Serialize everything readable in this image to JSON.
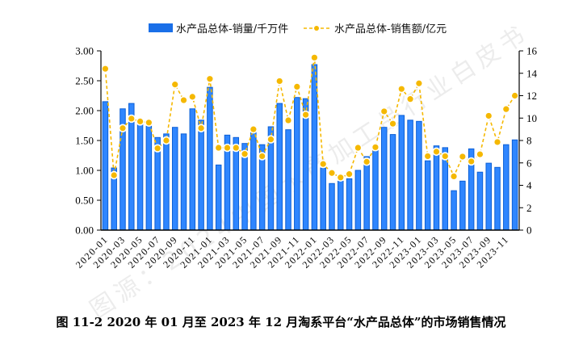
{
  "caption": "图 11-2 2020 年 01 月至 2023 年 12 月淘系平台“水产品总体”的市场销售情况",
  "watermark": "图源：2024中国水产加工品行业白皮书",
  "chart_data": {
    "type": "bar+line",
    "title": "",
    "legend_position": "top",
    "grid": false,
    "categories": [
      "2020-01",
      "2020-02",
      "2020-03",
      "2020-04",
      "2020-05",
      "2020-06",
      "2020-07",
      "2020-08",
      "2020-09",
      "2020-10",
      "2020-11",
      "2020-12",
      "2021-01",
      "2021-02",
      "2021-03",
      "2021-04",
      "2021-05",
      "2021-06",
      "2021-07",
      "2021-08",
      "2021-09",
      "2021-10",
      "2021-11",
      "2021-12",
      "2022-01",
      "2022-02",
      "2022-03",
      "2022-04",
      "2022-05",
      "2022-06",
      "2022-07",
      "2022-08",
      "2022-09",
      "2022-10",
      "2022-11",
      "2022-12",
      "2023-01",
      "2023-02",
      "2023-03",
      "2023-04",
      "2023-05",
      "2023-06",
      "2023-07",
      "2023-08",
      "2023-09",
      "2023-10",
      "2023-11",
      "2023-12"
    ],
    "x_tick_labels": [
      "2020-01",
      "2020-03",
      "2020-05",
      "2020-07",
      "2020-09",
      "2020-11",
      "2021-01",
      "2021-03",
      "2021-05",
      "2021-07",
      "2021-09",
      "2021-11",
      "2022-01",
      "2022-03",
      "2022-05",
      "2022-07",
      "2022-09",
      "2022-11",
      "2023-01",
      "2023-03",
      "2023-05",
      "2023-07",
      "2023-09",
      "2023-11"
    ],
    "series": [
      {
        "name": "水产品总体-销量/千万件",
        "type": "bar",
        "axis": "left",
        "color": "#1a6fe8",
        "values": [
          2.15,
          1.04,
          2.03,
          2.12,
          1.77,
          1.74,
          1.55,
          1.61,
          1.72,
          1.61,
          2.03,
          1.84,
          2.39,
          1.09,
          1.59,
          1.55,
          1.45,
          1.73,
          1.43,
          1.73,
          2.12,
          1.68,
          2.22,
          2.2,
          2.77,
          1.04,
          0.78,
          0.82,
          0.86,
          1.0,
          1.23,
          1.34,
          1.72,
          1.6,
          1.92,
          1.84,
          1.82,
          1.16,
          1.41,
          1.38,
          0.66,
          0.82,
          1.36,
          0.97,
          1.12,
          1.05,
          1.43,
          1.51
        ]
      },
      {
        "name": "水产品总体-销售额/亿元",
        "type": "line",
        "axis": "right",
        "color": "#f5b800",
        "values": [
          14.4,
          4.9,
          9.1,
          9.95,
          9.7,
          9.6,
          7.3,
          8.0,
          13.0,
          11.6,
          11.9,
          9.1,
          13.5,
          7.35,
          7.35,
          7.35,
          6.8,
          9.0,
          6.6,
          8.1,
          13.3,
          9.8,
          12.8,
          10.3,
          15.4,
          5.9,
          5.1,
          4.7,
          5.0,
          7.35,
          6.1,
          7.4,
          10.6,
          9.5,
          12.6,
          11.7,
          13.1,
          6.6,
          7.0,
          6.6,
          4.8,
          6.56,
          6.13,
          6.77,
          10.2,
          7.86,
          10.8,
          12.0
        ]
      }
    ],
    "y_left": {
      "ylim": [
        0,
        3
      ],
      "ticks": [
        "0.00",
        "0.50",
        "1.00",
        "1.50",
        "2.00",
        "2.50",
        "3.00"
      ],
      "label": ""
    },
    "y_right": {
      "ylim": [
        0,
        16
      ],
      "ticks": [
        "0",
        "2",
        "4",
        "6",
        "8",
        "10",
        "12",
        "14",
        "16"
      ],
      "label": ""
    },
    "xlabel": ""
  }
}
